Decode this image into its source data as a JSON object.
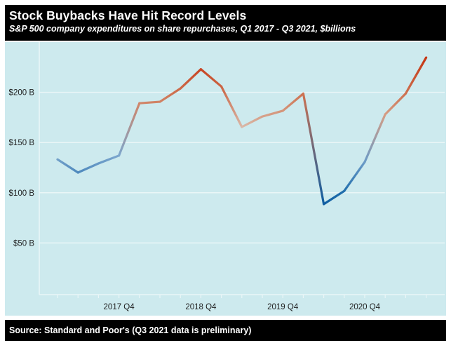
{
  "header": {
    "title": "Stock Buybacks Have Hit Record Levels",
    "subtitle": "S&P 500 company expenditures on share repurchases, Q1 2017 - Q3 2021, $billions"
  },
  "footer": {
    "source": "Source: Standard and Poor's (Q3 2021 data is preliminary)"
  },
  "colors": {
    "band_background": "#000000",
    "band_text": "#ffffff",
    "plot_background": "#cdeaee",
    "gridline": "#eaf6f7",
    "axis_line": "#eaf6f7",
    "axis_text": "#1f1f1f",
    "line_low_blue": "#0f5ea2",
    "line_high_red": "#c53411",
    "value_color_scale": [
      {
        "value": 88.7,
        "color": "#0f5ea2"
      },
      {
        "value": 102,
        "color": "#2370ad"
      },
      {
        "value": 120,
        "color": "#4e89bd"
      },
      {
        "value": 137,
        "color": "#7ca6cd"
      },
      {
        "value": 165.5,
        "color": "#d9b8a8"
      },
      {
        "value": 182,
        "color": "#d49479"
      },
      {
        "value": 199,
        "color": "#cd7150"
      },
      {
        "value": 205.8,
        "color": "#cb6544"
      },
      {
        "value": 223,
        "color": "#c84423"
      },
      {
        "value": 234.6,
        "color": "#c53411"
      }
    ]
  },
  "chart_data": {
    "type": "line",
    "title": "Stock Buybacks Have Hit Record Levels",
    "subtitle": "S&P 500 company expenditures on share repurchases, Q1 2017 - Q3 2021, $billions",
    "x": [
      "2017 Q1",
      "2017 Q2",
      "2017 Q3",
      "2017 Q4",
      "2018 Q1",
      "2018 Q2",
      "2018 Q3",
      "2018 Q4",
      "2019 Q1",
      "2019 Q2",
      "2019 Q3",
      "2019 Q4",
      "2020 Q1",
      "2020 Q2",
      "2020 Q3",
      "2020 Q4",
      "2021 Q1",
      "2021 Q2",
      "2021 Q3"
    ],
    "values": [
      133.2,
      120.1,
      129.2,
      137.0,
      189.1,
      190.6,
      203.8,
      223.0,
      205.8,
      165.5,
      175.9,
      181.6,
      198.7,
      88.7,
      101.8,
      130.6,
      178.1,
      198.8,
      234.6
    ],
    "units": "$billions",
    "ylabel": "",
    "xlabel": "",
    "ylim": [
      0,
      251
    ],
    "yticks": [
      {
        "value": 50,
        "label": "$50 B"
      },
      {
        "value": 100,
        "label": "$100 B"
      },
      {
        "value": 150,
        "label": "$150 B"
      },
      {
        "value": 200,
        "label": "$200 B"
      }
    ],
    "xticks": [
      {
        "index": 3,
        "label": "2017 Q4"
      },
      {
        "index": 7,
        "label": "2018 Q4"
      },
      {
        "index": 11,
        "label": "2019 Q4"
      },
      {
        "index": 15,
        "label": "2020 Q4"
      }
    ],
    "grid": true,
    "legend": false,
    "color_encoding": "line segments colored by value: dark blue = low, pale = mid, red = high"
  }
}
